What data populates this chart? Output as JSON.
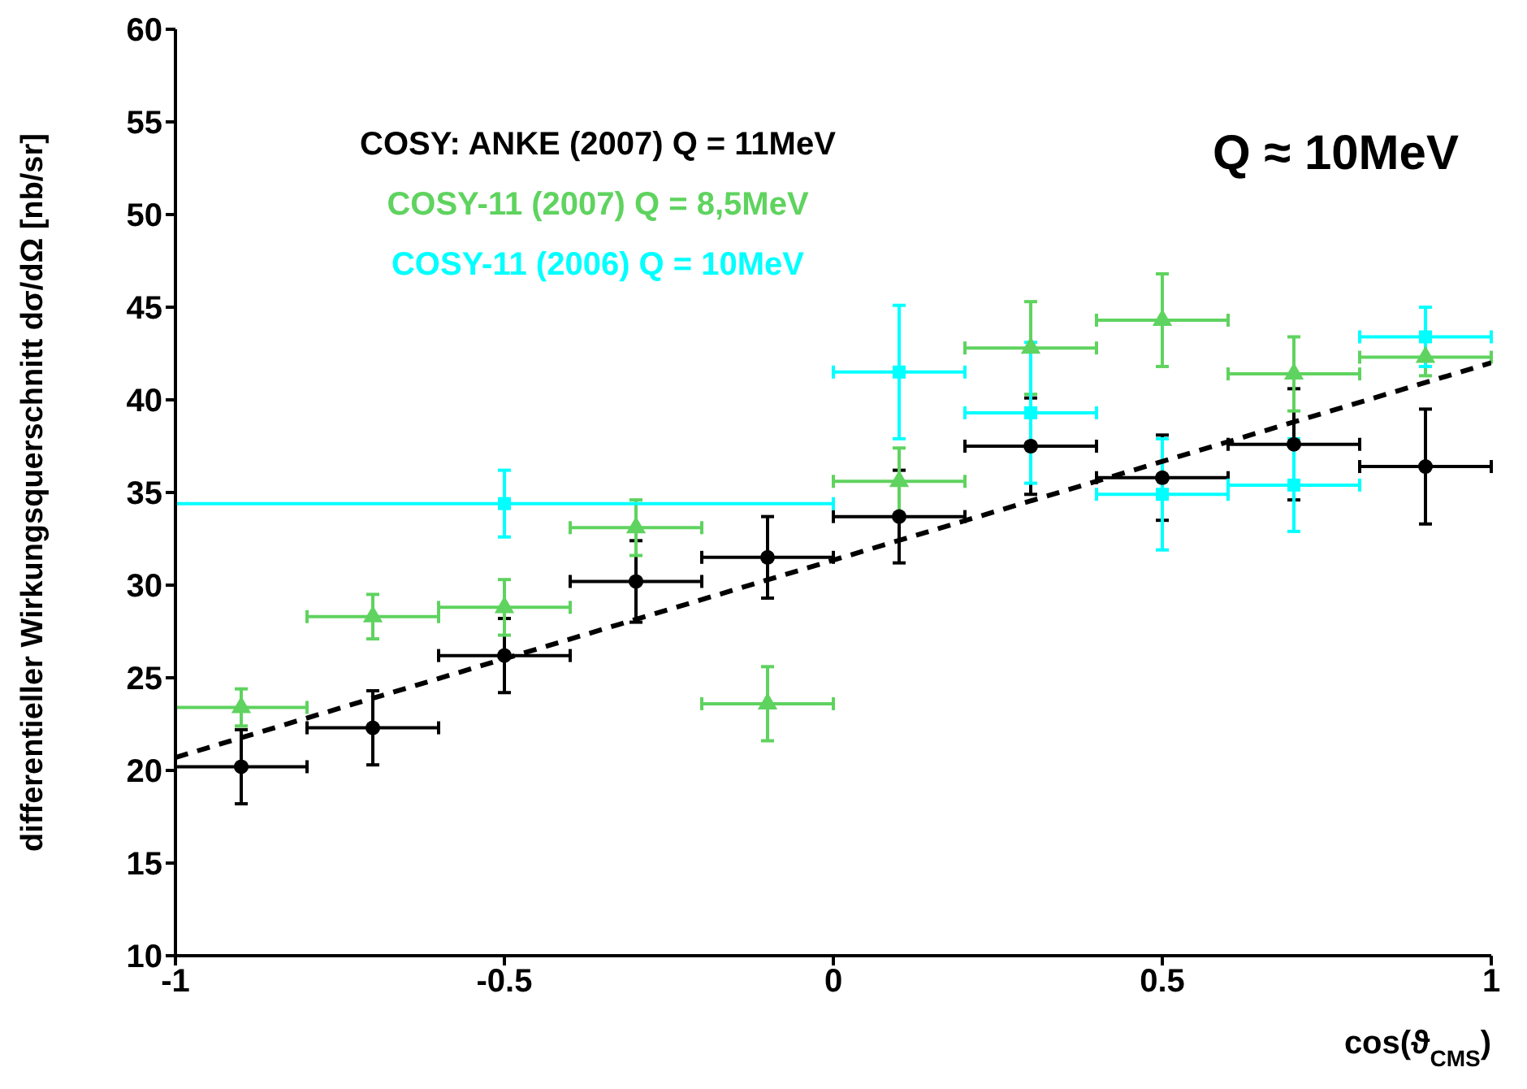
{
  "chart_data": {
    "type": "scatter",
    "xlabel": "cos(ϑ$_{CMS}$)",
    "ylabel": "differentieller Wirkungsquerschnitt dσ/dΩ [nb/sr]",
    "xlim": [
      -1,
      1
    ],
    "xticks": [
      -1,
      -0.5,
      0,
      0.5,
      1
    ],
    "ylim": [
      10,
      60
    ],
    "yticks": [
      10,
      15,
      20,
      25,
      30,
      35,
      40,
      45,
      50,
      55,
      60
    ],
    "grid": false,
    "legend": "top left",
    "annotations": [
      "Q ≈ 10MeV"
    ],
    "series": [
      {
        "name": "COSY: ANKE (2007) Q = 11MeV",
        "color": "#000000",
        "marker": "circle",
        "x": [
          -0.9,
          -0.7,
          -0.5,
          -0.3,
          -0.1,
          0.1,
          0.3,
          0.5,
          0.7,
          0.9
        ],
        "values": [
          20.2,
          22.3,
          26.2,
          30.2,
          31.5,
          33.7,
          37.5,
          35.8,
          37.6,
          36.4
        ],
        "errors": [
          2,
          2,
          2,
          2.2,
          2.2,
          2.5,
          2.6,
          2.3,
          3,
          3.1
        ],
        "xerrors": [
          0.1,
          0.1,
          0.1,
          0.1,
          0.1,
          0.1,
          0.1,
          0.1,
          0.1,
          0.1
        ]
      },
      {
        "name": "COSY-11 (2007) Q = 8,5MeV",
        "color": "#5fd35f",
        "marker": "triangle",
        "x": [
          -0.9,
          -0.7,
          -0.5,
          -0.3,
          -0.1,
          0.1,
          0.3,
          0.5,
          0.7,
          0.9
        ],
        "values": [
          23.4,
          28.3,
          28.8,
          33.1,
          23.6,
          35.6,
          42.8,
          44.3,
          41.4,
          42.3
        ],
        "errors": [
          1,
          1.2,
          1.5,
          1.5,
          2,
          1.8,
          2.5,
          2.5,
          2,
          1
        ],
        "xerrors": [
          0.1,
          0.1,
          0.1,
          0.1,
          0.1,
          0.1,
          0.1,
          0.1,
          0.1,
          0.1
        ]
      },
      {
        "name": "COSY-11 (2006) Q = 10MeV",
        "color": "#00ffff",
        "marker": "square",
        "x": [
          -0.5,
          0.1,
          0.3,
          0.5,
          0.7,
          0.9
        ],
        "values": [
          34.4,
          41.5,
          39.3,
          34.9,
          35.4,
          43.4
        ],
        "errors": [
          1.8,
          3.6,
          3.8,
          3,
          2.5,
          1.6
        ],
        "xerrors": [
          0.5,
          0.1,
          0.1,
          0.1,
          0.1,
          0.1
        ]
      },
      {
        "type": "line",
        "color": "#000000",
        "marker": "none",
        "line_style": "dashed",
        "x": [
          -1,
          1
        ],
        "values": [
          20.7,
          42
        ]
      }
    ]
  }
}
